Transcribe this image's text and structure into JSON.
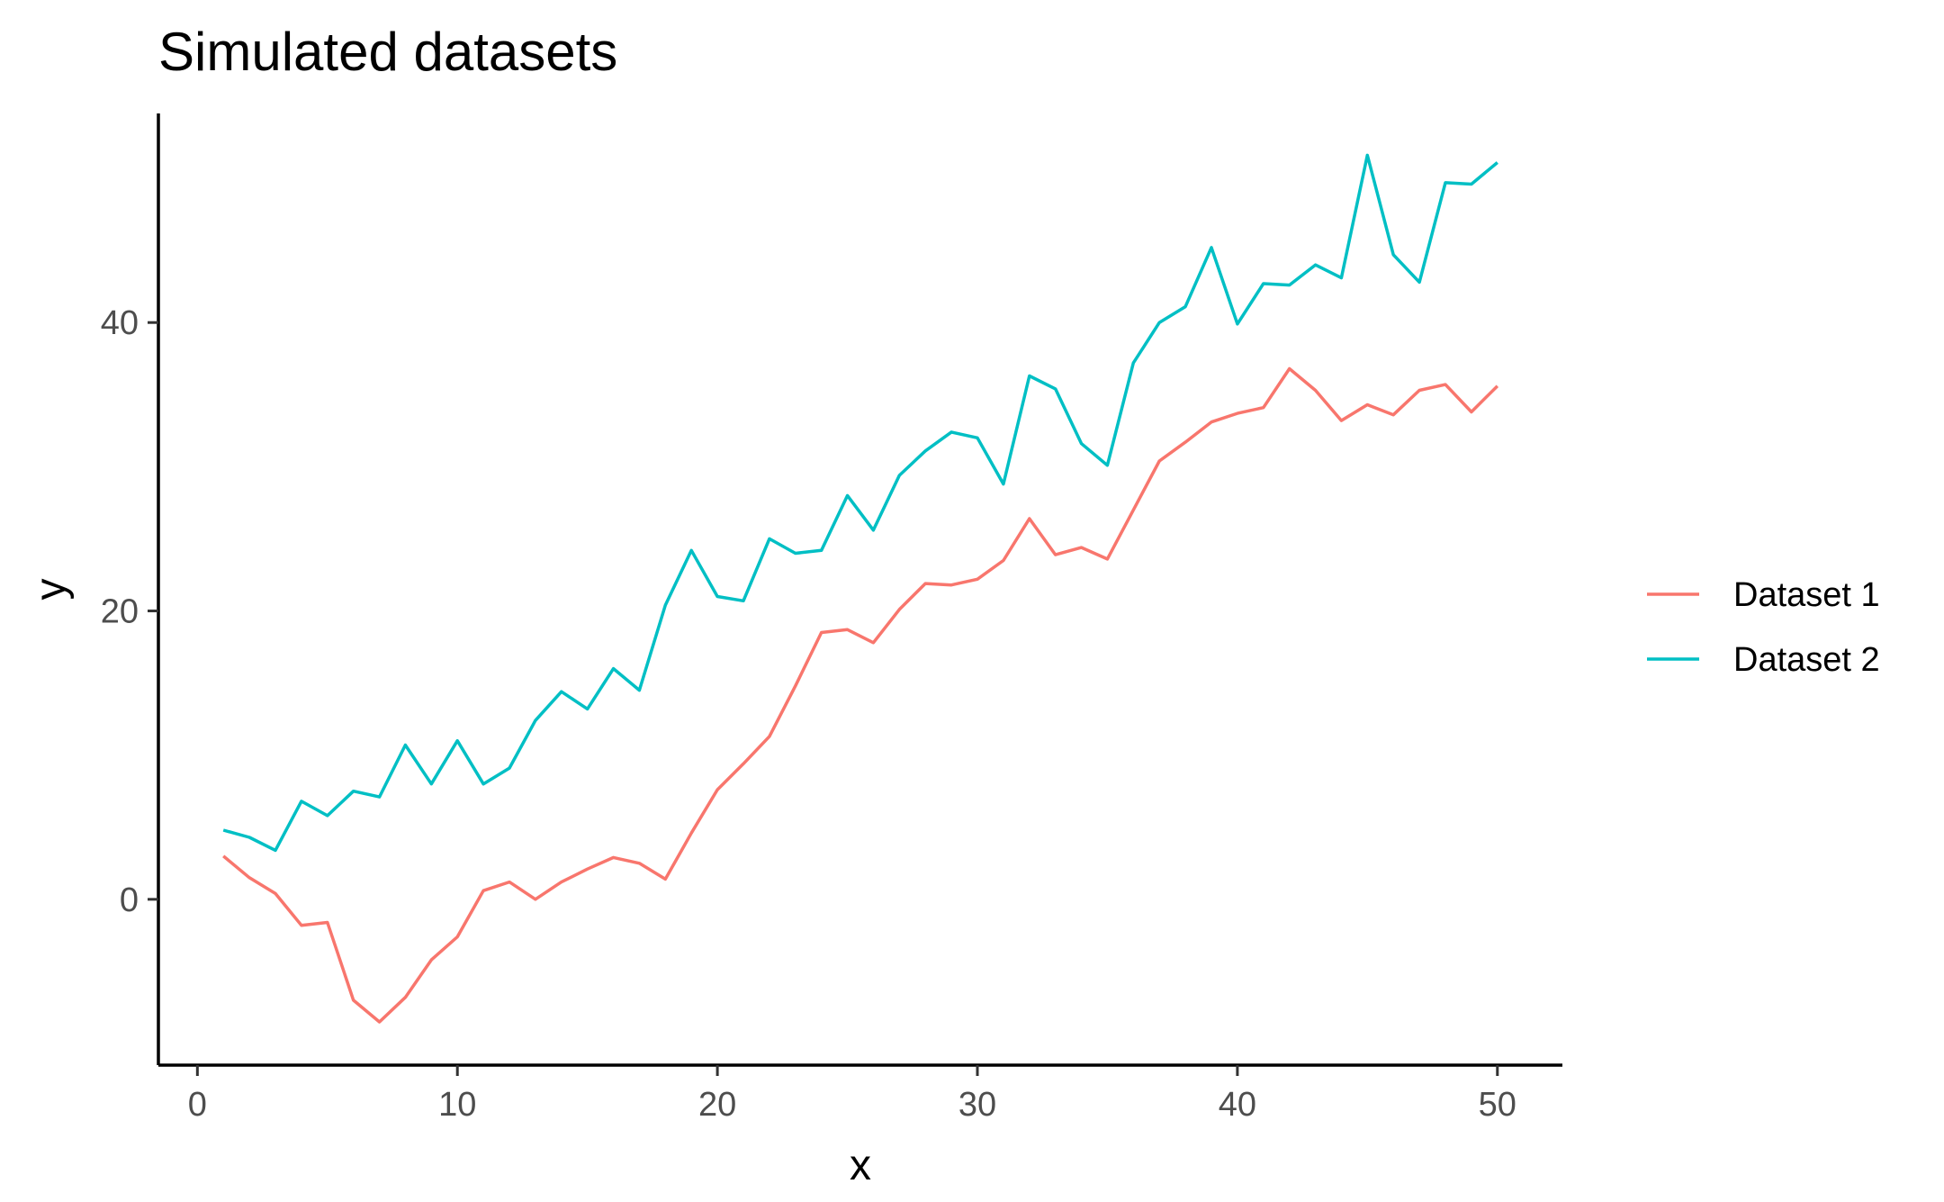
{
  "chart_data": {
    "type": "line",
    "title": "Simulated datasets",
    "xlabel": "x",
    "ylabel": "y",
    "xlim": [
      -1.5,
      52.5
    ],
    "ylim": [
      -11.5,
      54.5
    ],
    "xticks": [
      0,
      10,
      20,
      30,
      40,
      50
    ],
    "yticks": [
      0,
      20,
      40
    ],
    "grid": false,
    "legend_position": "right",
    "x": [
      1,
      2,
      3,
      4,
      5,
      6,
      7,
      8,
      9,
      10,
      11,
      12,
      13,
      14,
      15,
      16,
      17,
      18,
      19,
      20,
      21,
      22,
      23,
      24,
      25,
      26,
      27,
      28,
      29,
      30,
      31,
      32,
      33,
      34,
      35,
      36,
      37,
      38,
      39,
      40,
      41,
      42,
      43,
      44,
      45,
      46,
      47,
      48,
      49,
      50
    ],
    "series": [
      {
        "name": "Dataset 1",
        "color": "#F8766D",
        "values": [
          3.0,
          1.5,
          0.4,
          -1.8,
          -1.6,
          -7.0,
          -8.5,
          -6.8,
          -4.2,
          -2.6,
          0.6,
          1.2,
          0.0,
          1.2,
          2.1,
          2.9,
          2.5,
          1.4,
          4.6,
          7.6,
          9.4,
          11.3,
          14.8,
          18.5,
          18.7,
          17.8,
          20.1,
          21.9,
          21.8,
          22.2,
          23.5,
          26.4,
          23.9,
          24.4,
          23.6,
          27.0,
          30.4,
          31.7,
          33.1,
          33.7,
          34.1,
          36.8,
          35.3,
          33.2,
          34.3,
          33.6,
          35.3,
          35.7,
          33.8,
          35.6
        ]
      },
      {
        "name": "Dataset 2",
        "color": "#00BFC4",
        "values": [
          4.8,
          4.3,
          3.4,
          6.8,
          5.8,
          7.5,
          7.1,
          10.7,
          8.0,
          11.0,
          8.0,
          9.1,
          12.4,
          14.4,
          13.2,
          16.0,
          14.5,
          20.4,
          24.2,
          21.0,
          20.7,
          25.0,
          24.0,
          24.2,
          28.0,
          25.6,
          29.4,
          31.1,
          32.4,
          32.0,
          28.8,
          36.3,
          35.4,
          31.6,
          30.1,
          37.2,
          40.0,
          41.1,
          45.2,
          39.9,
          42.7,
          42.6,
          44.0,
          43.1,
          51.6,
          44.7,
          42.8,
          49.7,
          49.6,
          51.1
        ]
      }
    ]
  }
}
